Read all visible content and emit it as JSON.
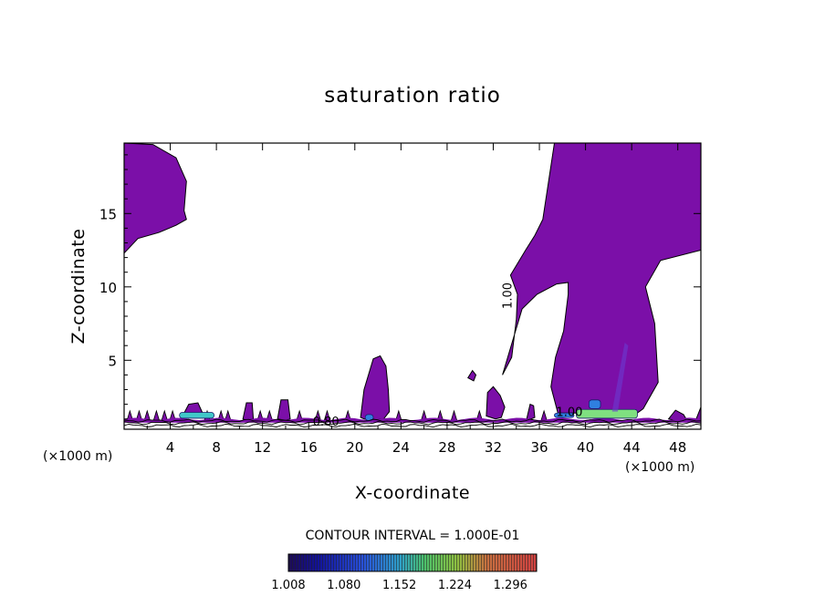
{
  "chart_data": {
    "type": "heatmap",
    "title": "saturation ratio",
    "xlabel": "X-coordinate",
    "ylabel": "Z-coordinate",
    "x_unit": "(×1000 m)",
    "y_unit": "(×1000 m)",
    "xlim": [
      0,
      50
    ],
    "ylim": [
      0.3,
      19.8
    ],
    "x_ticks": [
      4,
      8,
      12,
      16,
      20,
      24,
      28,
      32,
      36,
      40,
      44,
      48
    ],
    "y_ticks": [
      5,
      10,
      15
    ],
    "contour_interval": "CONTOUR INTERVAL = 1.000E-01",
    "contour_labels": [
      "1.00",
      "1.00",
      "0.80"
    ],
    "colorbar_ticks": [
      "1.008",
      "1.080",
      "1.152",
      "1.224",
      "1.296"
    ],
    "colorbar_range": [
      1.008,
      1.33
    ],
    "fill_color": "#7b0fa8",
    "regions": [
      {
        "name": "upper-left plume",
        "x": [
          0,
          2.5,
          4.5,
          5.4,
          5.2,
          5.4,
          4.5,
          3.0,
          1.2,
          0
        ],
        "z": [
          19.8,
          19.7,
          18.8,
          17.2,
          15.2,
          14.6,
          14.2,
          13.7,
          13.3,
          12.3
        ]
      },
      {
        "name": "right tall column",
        "x": [
          37.3,
          43.2,
          43.2,
          50,
          50,
          46.5,
          45.2,
          46.0,
          46.3,
          45.0,
          44.3,
          43.4,
          42.5,
          37.6,
          37.0,
          37.4,
          38.1,
          38.5,
          38.5,
          37.5,
          35.8,
          34.5,
          32.8,
          33.6,
          34.0,
          34.1,
          33.5,
          34.8,
          35.6,
          36.3,
          37.3
        ],
        "z": [
          19.8,
          19.8,
          19.8,
          19.8,
          12.5,
          11.8,
          10.0,
          7.5,
          3.5,
          1.7,
          1.3,
          1.2,
          1.4,
          1.4,
          3.2,
          5.2,
          7.0,
          9.5,
          10.3,
          10.2,
          9.5,
          8.5,
          4.0,
          5.2,
          7.8,
          9.5,
          10.8,
          12.5,
          13.5,
          14.6,
          19.8
        ]
      },
      {
        "name": "central hill",
        "x": [
          20.5,
          20.8,
          21.6,
          22.2,
          22.7,
          22.9,
          23.0,
          22.5,
          21.5,
          20.8,
          20.5
        ],
        "z": [
          1.1,
          3.0,
          5.1,
          5.3,
          4.6,
          3.0,
          1.5,
          1.0,
          0.9,
          1.0,
          1.1
        ]
      },
      {
        "name": "right hill",
        "x": [
          31.4,
          31.5,
          32.0,
          32.6,
          33.0,
          32.7,
          32.2,
          31.4
        ],
        "z": [
          1.2,
          2.8,
          3.2,
          2.6,
          1.8,
          1.1,
          1.0,
          1.2
        ]
      },
      {
        "name": "right bump",
        "x": [
          47.2,
          47.8,
          48.5,
          48.8,
          48.2,
          47.2
        ],
        "z": [
          1.0,
          1.6,
          1.3,
          0.9,
          0.8,
          1.0
        ]
      },
      {
        "name": "far right bump",
        "x": [
          49.6,
          50,
          50,
          49.6
        ],
        "z": [
          1.0,
          1.8,
          0.9,
          1.0
        ]
      },
      {
        "name": "mid small",
        "x": [
          29.8,
          30.2,
          30.5,
          30.3,
          29.8
        ],
        "z": [
          3.8,
          4.3,
          4.0,
          3.6,
          3.8
        ]
      },
      {
        "name": "bump 1",
        "x": [
          10.3,
          10.6,
          11.1,
          11.2,
          10.6,
          10.3
        ],
        "z": [
          1.0,
          2.1,
          2.1,
          1.0,
          0.9,
          1.0
        ]
      },
      {
        "name": "bump 2",
        "x": [
          13.3,
          13.6,
          14.2,
          14.4,
          14.0,
          13.3
        ],
        "z": [
          1.0,
          2.3,
          2.3,
          1.0,
          0.9,
          1.0
        ]
      },
      {
        "name": "bump 3",
        "x": [
          34.9,
          35.2,
          35.5,
          35.6,
          35.0,
          34.9
        ],
        "z": [
          1.0,
          2.0,
          1.9,
          1.1,
          0.9,
          1.0
        ]
      },
      {
        "name": "bump 4",
        "x": [
          5.2,
          5.6,
          6.4,
          6.8,
          6.3,
          5.2
        ],
        "z": [
          1.4,
          2.0,
          2.1,
          1.4,
          1.2,
          1.4
        ]
      }
    ],
    "hot_spots": [
      {
        "x": [
          4.8,
          7.8
        ],
        "z": [
          1.05,
          1.45
        ],
        "value": 1.12
      },
      {
        "x": [
          39.2,
          44.5
        ],
        "z": [
          1.05,
          1.65
        ],
        "value": 1.2
      },
      {
        "x": [
          40.3,
          41.3
        ],
        "z": [
          1.7,
          2.3
        ],
        "value": 1.1
      },
      {
        "x": [
          20.9,
          21.6
        ],
        "z": [
          0.9,
          1.3
        ],
        "value": 1.08
      },
      {
        "x": [
          37.3,
          39.0
        ],
        "z": [
          1.1,
          1.4
        ],
        "value": 1.06
      }
    ]
  }
}
